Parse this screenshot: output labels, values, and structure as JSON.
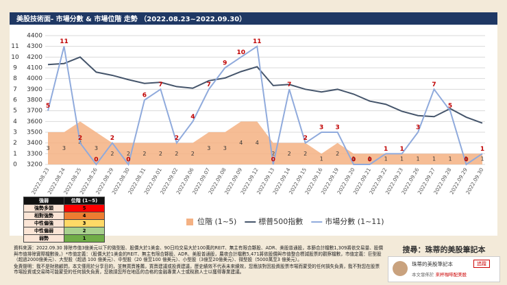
{
  "chart_data": {
    "type": "line",
    "title": "美股技術面- 市場分數 & 市場位階 走勢 （2022.08.23~2022.09.30）",
    "categories": [
      "2022.08.23",
      "2022.08.24",
      "2022.08.25",
      "2022.08.26",
      "2022.08.29",
      "2022.08.30",
      "2022.08.31",
      "2022.09.01",
      "2022.09.02",
      "2022.09.06",
      "2022.09.07",
      "2022.09.08",
      "2022.09.09",
      "2022.09.12",
      "2022.09.13",
      "2022.09.14",
      "2022.09.15",
      "2022.09.16",
      "2022.09.19",
      "2022.09.20",
      "2022.09.21",
      "2022.09.22",
      "2022.09.23",
      "2022.09.26",
      "2022.09.27",
      "2022.09.28",
      "2022.09.29",
      "2022.09.30"
    ],
    "series": [
      {
        "name": "位階 (1~5)",
        "type": "area",
        "axis": "y2",
        "color": "#f4b183",
        "values": [
          3,
          3,
          4,
          3,
          2,
          2,
          2,
          2,
          2,
          2,
          3,
          3,
          4,
          4,
          2,
          2,
          2,
          1,
          2,
          1,
          1,
          1,
          1,
          1,
          1,
          1,
          1,
          1
        ]
      },
      {
        "name": "標普500指數",
        "type": "line",
        "color": "#44546a",
        "values": [
          4130,
          4140,
          4200,
          4060,
          4030,
          3990,
          3955,
          3965,
          3925,
          3910,
          3980,
          4005,
          4065,
          4110,
          3935,
          3945,
          3900,
          3875,
          3900,
          3855,
          3790,
          3760,
          3695,
          3655,
          3645,
          3720,
          3640,
          3585
        ]
      },
      {
        "name": "市場分數 (1~11)",
        "type": "line",
        "axis": "y2",
        "color": "#8faadc",
        "values": [
          5,
          11,
          2,
          0,
          2,
          0,
          6,
          7,
          2,
          4,
          7,
          9,
          10,
          11,
          0,
          7,
          2,
          3,
          3,
          0,
          0,
          1,
          1,
          3,
          7,
          5,
          0,
          1
        ]
      }
    ],
    "ylim": [
      3200,
      4400
    ],
    "yticks": [
      3200,
      3300,
      3400,
      3500,
      3600,
      3700,
      3800,
      3900,
      4000,
      4100,
      4200,
      4300,
      4400
    ],
    "y2lim": [
      0,
      12
    ],
    "y2ticks": [
      0,
      1,
      2,
      3,
      4,
      5,
      6,
      7,
      8,
      9,
      10,
      11
    ],
    "grid": true
  },
  "strength_table": {
    "headers": [
      "強弱",
      "位階 (1~5)"
    ],
    "rows": [
      {
        "label": "強勢多頭",
        "value": 5,
        "color": "#ff0000"
      },
      {
        "label": "相對強勢",
        "value": 4,
        "color": "#ed7d31"
      },
      {
        "label": "中性偏強",
        "value": 3,
        "color": "#ffd966"
      },
      {
        "label": "中性偏弱",
        "value": 2,
        "color": "#a9d18e"
      },
      {
        "label": "弱勢",
        "value": 1,
        "color": "#70ad47"
      }
    ]
  },
  "notes": [
    "資料來源：2022.09.30 排除市值3億美元以下的微型股、股價大於1美金、90日均交易大於100萬的REIT、無主有限合夥股、ADR、美股普通股，本篩合計檔數1,309將依交易量、股價與市值排除實際檔數後，）*市值定義：（股價大於1美金的REIT、無主有限合夥股、ADR、美股普通股，農夜合計檔數5,471將依股價與市值整合標減股票的觀察檔數，市值定義：巨型股（超過2000億美元）、大型股（超過 100 億美元）、中型股（20 億至100 億美元）、小型股（3億至20億美元）、微型股（5000萬至3 億美元）。",
    "免責聲明：我不是財務顧問，本文僅用於分享目的，並無買賣推薦，買賣建議或投資建議，歷史績效不代表未來績效，您應該對因投資股票市場而蒙受的任何損失負責，我不對您在股票市場投資或交易時可能蒙受的任何損失負責，您務請您所在地區的合格的金融專業人士或稅務人士以獲得專業建議。"
  ],
  "promo": {
    "search": "搜尋：珠蒂的美股筆記本",
    "name": "珠蒂的美股筆記本",
    "follow": "追蹤",
    "published": "本文發佈於",
    "site": "來杯咖啡配美股"
  }
}
